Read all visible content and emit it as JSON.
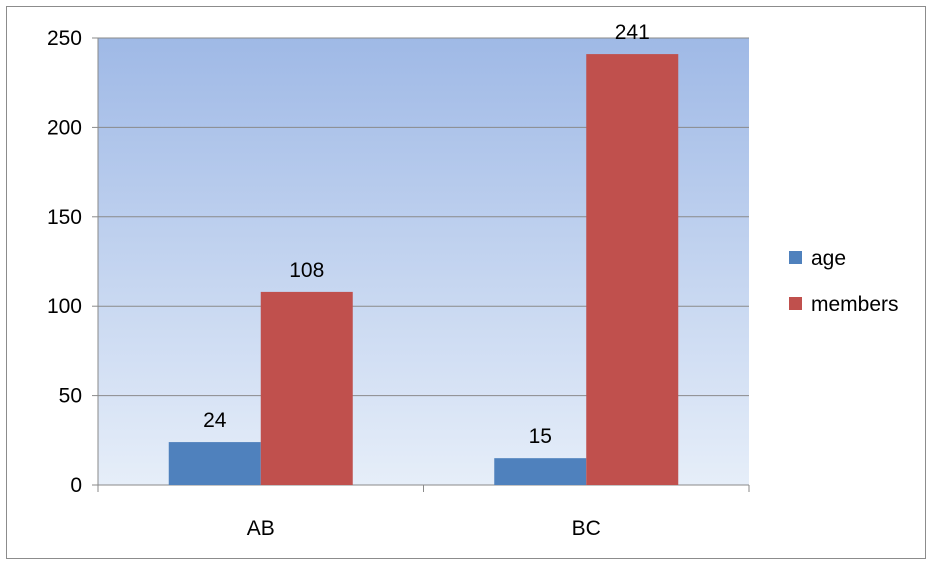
{
  "chart_data": {
    "type": "bar",
    "categories": [
      "AB",
      "BC"
    ],
    "series": [
      {
        "name": "age",
        "values": [
          24,
          15
        ],
        "color": "#4f81bd"
      },
      {
        "name": "members",
        "values": [
          108,
          241
        ],
        "color": "#c0504d"
      }
    ],
    "ylim": [
      0,
      250
    ],
    "yticks": [
      0,
      50,
      100,
      150,
      200,
      250
    ],
    "grid": true,
    "legend_position": "right",
    "data_labels": true,
    "plot_background_gradient": [
      "#9fb9e6",
      "#e6eef9"
    ]
  }
}
